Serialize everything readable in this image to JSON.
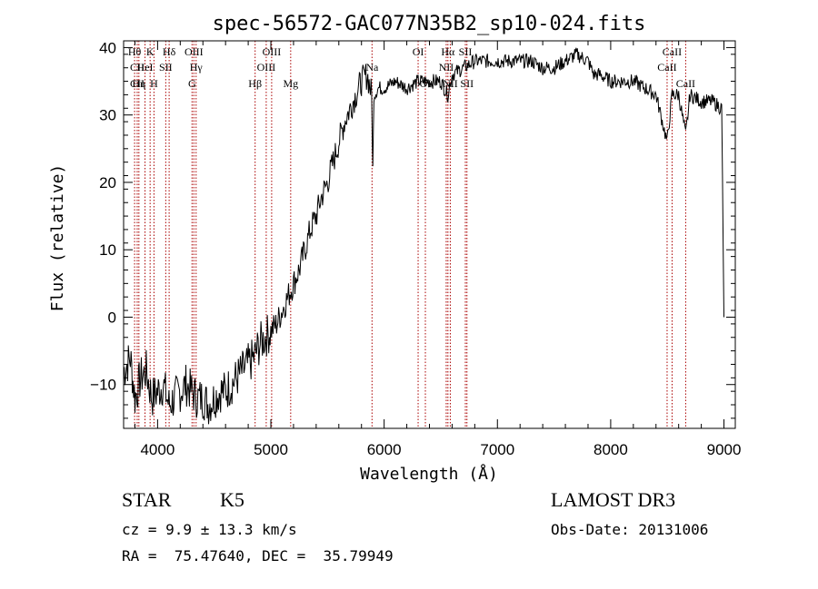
{
  "chart_data": {
    "type": "line",
    "title": "spec-56572-GAC077N35B2_sp10-024.fits",
    "xlabel": "Wavelength (Å)",
    "ylabel": "Flux (relative)",
    "xlim": [
      3700,
      9100
    ],
    "ylim": [
      -16.5,
      41
    ],
    "xticks": [
      4000,
      5000,
      6000,
      7000,
      8000,
      9000
    ],
    "xtick_labels": [
      "4000",
      "5000",
      "6000",
      "7000",
      "8000",
      "9000"
    ],
    "yticks": [
      -10,
      0,
      10,
      20,
      30,
      40
    ],
    "ytick_labels": [
      "−10",
      "0",
      "10",
      "20",
      "30",
      "40"
    ],
    "grid": false,
    "series": [
      {
        "name": "flux",
        "x": [
          3700,
          3760,
          3800,
          3850,
          3900,
          3950,
          4000,
          4050,
          4100,
          4150,
          4200,
          4250,
          4300,
          4350,
          4400,
          4450,
          4500,
          4550,
          4600,
          4650,
          4700,
          4750,
          4800,
          4850,
          4900,
          4950,
          5000,
          5050,
          5100,
          5150,
          5200,
          5250,
          5300,
          5350,
          5400,
          5450,
          5500,
          5550,
          5600,
          5650,
          5700,
          5750,
          5800,
          5850,
          5890,
          5900,
          5910,
          5950,
          6000,
          6100,
          6200,
          6300,
          6400,
          6500,
          6563,
          6600,
          6700,
          6800,
          6900,
          7000,
          7100,
          7200,
          7300,
          7400,
          7500,
          7600,
          7700,
          7800,
          7850,
          7900,
          8000,
          8100,
          8200,
          8300,
          8400,
          8498,
          8542,
          8600,
          8662,
          8700,
          8800,
          8900,
          8980,
          9000
        ],
        "values": [
          -8,
          -6,
          -12,
          -9,
          -8,
          -12,
          -11,
          -10,
          -13,
          -12,
          -11,
          -10,
          -11,
          -12,
          -12,
          -13,
          -12,
          -11,
          -11,
          -10,
          -9,
          -8,
          -7,
          -6,
          -4,
          -3,
          -2,
          -1,
          1,
          3,
          5,
          7,
          10,
          13,
          15,
          18,
          20,
          23,
          26,
          29,
          31,
          33,
          35,
          36,
          33,
          22,
          33,
          34,
          34,
          35,
          34,
          35,
          35,
          35,
          33,
          36,
          37,
          38,
          38,
          38,
          38,
          38,
          38,
          37,
          37,
          38,
          39,
          38,
          36,
          36,
          35,
          35,
          35,
          34,
          33,
          26,
          33,
          33,
          27,
          33,
          32,
          32,
          31,
          0
        ]
      }
    ],
    "line_colors": {
      "flux": "#000000",
      "lines": "#aa0000"
    },
    "spectral_lines": [
      {
        "label": "Hθ",
        "wavelength": 3797,
        "row": 1
      },
      {
        "label": "CII",
        "wavelength": 3820,
        "row": 2
      },
      {
        "label": "CII",
        "wavelength": 3820,
        "row": 3
      },
      {
        "label": "Hη",
        "wavelength": 3835,
        "row": 3
      },
      {
        "label": "HeI",
        "wavelength": 3889,
        "row": 2
      },
      {
        "label": "K",
        "wavelength": 3934,
        "row": 1
      },
      {
        "label": "H",
        "wavelength": 3968,
        "row": 3
      },
      {
        "label": "SII",
        "wavelength": 4072,
        "row": 2
      },
      {
        "label": "Hδ",
        "wavelength": 4102,
        "row": 1
      },
      {
        "label": "OIII",
        "wavelength": 4320,
        "row": 1
      },
      {
        "label": "Hγ",
        "wavelength": 4340,
        "row": 2
      },
      {
        "label": "G",
        "wavelength": 4304,
        "row": 3
      },
      {
        "label": "Hβ",
        "wavelength": 4861,
        "row": 3
      },
      {
        "label": "OIII",
        "wavelength": 4959,
        "row": 2
      },
      {
        "label": "OIII",
        "wavelength": 5007,
        "row": 1
      },
      {
        "label": "Mg",
        "wavelength": 5175,
        "row": 3
      },
      {
        "label": "Na",
        "wavelength": 5893,
        "row": 2
      },
      {
        "label": "OI",
        "wavelength": 6300,
        "row": 1
      },
      {
        "label": "OI",
        "wavelength": 6364,
        "row": 3
      },
      {
        "label": "Hα",
        "wavelength": 6563,
        "row": 1
      },
      {
        "label": "NII",
        "wavelength": 6548,
        "row": 2
      },
      {
        "label": "NII",
        "wavelength": 6584,
        "row": 3
      },
      {
        "label": "SII",
        "wavelength": 6717,
        "row": 1
      },
      {
        "label": "SII",
        "wavelength": 6731,
        "row": 3
      },
      {
        "label": "CaII",
        "wavelength": 8498,
        "row": 2
      },
      {
        "label": "CaII",
        "wavelength": 8542,
        "row": 1
      },
      {
        "label": "CaII",
        "wavelength": 8662,
        "row": 3
      }
    ]
  },
  "info": {
    "object_class": "STAR",
    "subclass": "K5",
    "survey": "LAMOST DR3",
    "cz": "cz = 9.9 ± 13.3 km/s",
    "obs_date": "Obs-Date: 20131006",
    "coords": "RA =  75.47640, DEC =  35.79949"
  }
}
